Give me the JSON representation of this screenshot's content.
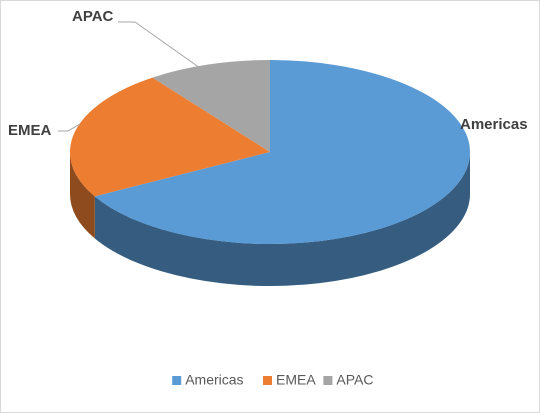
{
  "chart_data": {
    "type": "pie3d",
    "categories": [
      "Americas",
      "EMEA",
      "APAC"
    ],
    "values": [
      67,
      23,
      10
    ],
    "colors": [
      "#5b9bd5",
      "#ed7d31",
      "#a5a5a5"
    ],
    "legend": "bottom"
  }
}
